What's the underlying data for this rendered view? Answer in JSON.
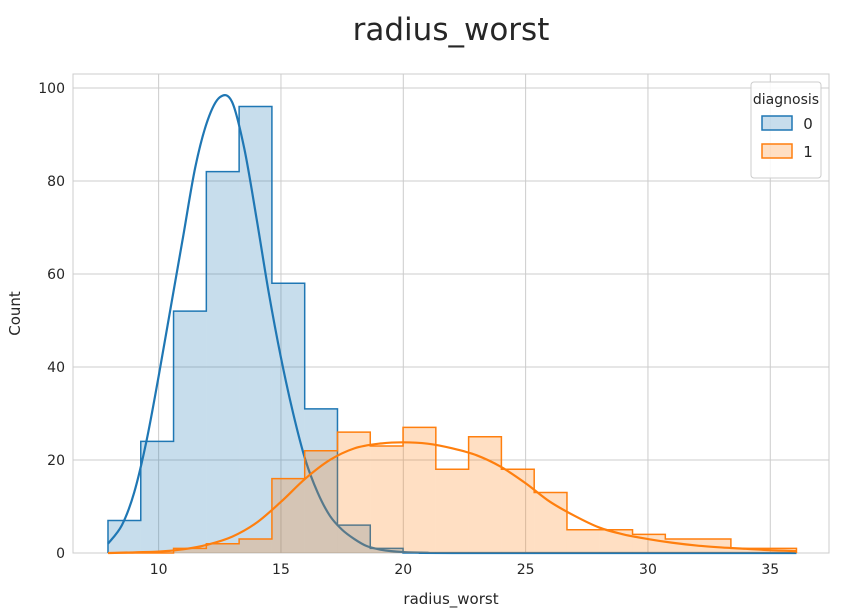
{
  "chart_data": {
    "type": "histogram",
    "title": "radius_worst",
    "xlabel": "radius_worst",
    "ylabel": "Count",
    "xlim": [
      6.5,
      37.4
    ],
    "ylim": [
      0,
      103
    ],
    "x_ticks": [
      10,
      15,
      20,
      25,
      30,
      35
    ],
    "y_ticks": [
      0,
      20,
      40,
      60,
      80,
      100
    ],
    "grid": true,
    "legend": {
      "title": "diagnosis",
      "position": "top-right",
      "entries": [
        "0",
        "1"
      ]
    },
    "bin_edges": [
      7.93,
      9.27,
      10.61,
      11.95,
      13.29,
      14.63,
      15.97,
      17.31,
      18.65,
      19.99,
      21.33,
      22.67,
      24.01,
      25.35,
      26.69,
      28.03,
      29.37,
      30.71,
      32.05,
      33.39,
      34.73,
      36.07
    ],
    "series": [
      {
        "name": "0",
        "color": "#1f77b4",
        "counts": [
          7,
          24,
          52,
          82,
          96,
          58,
          31,
          6,
          1,
          0,
          0,
          0,
          0,
          0,
          0,
          0,
          0,
          0,
          0,
          0,
          0
        ],
        "kde_x": [
          7.93,
          8.5,
          9.0,
          9.5,
          10.0,
          10.5,
          11.0,
          11.5,
          12.0,
          12.5,
          13.0,
          13.5,
          14.0,
          14.5,
          15.0,
          15.5,
          16.0,
          16.5,
          17.0,
          17.5,
          18.0,
          18.5,
          19.0,
          19.5,
          20.0,
          21.0,
          22.0,
          36.07
        ],
        "kde_y": [
          2,
          6,
          13,
          24,
          38,
          53,
          68,
          83,
          93,
          98,
          97,
          87,
          72,
          56,
          42,
          30,
          20,
          13,
          8,
          5,
          3,
          1.5,
          0.8,
          0.4,
          0.2,
          0.05,
          0,
          0
        ]
      },
      {
        "name": "1",
        "color": "#ff7f0e",
        "counts": [
          0,
          0,
          1,
          2,
          3,
          16,
          22,
          26,
          23,
          27,
          18,
          25,
          18,
          13,
          5,
          5,
          4,
          3,
          3,
          1,
          1
        ],
        "kde_x": [
          7.93,
          10.0,
          11.0,
          12.0,
          13.0,
          14.0,
          15.0,
          16.0,
          17.0,
          18.0,
          19.0,
          20.0,
          21.0,
          22.0,
          23.0,
          24.0,
          25.0,
          26.0,
          27.0,
          28.0,
          29.0,
          30.0,
          31.0,
          32.0,
          33.0,
          34.0,
          35.0,
          36.07
        ],
        "kde_y": [
          0,
          0.3,
          0.8,
          1.8,
          3.5,
          6.5,
          11,
          16,
          20,
          22.5,
          23.5,
          23.8,
          23.5,
          22.5,
          21,
          18.5,
          15,
          11,
          8,
          5.5,
          4,
          3,
          2.2,
          1.6,
          1.2,
          0.9,
          0.6,
          0.4
        ]
      }
    ]
  }
}
